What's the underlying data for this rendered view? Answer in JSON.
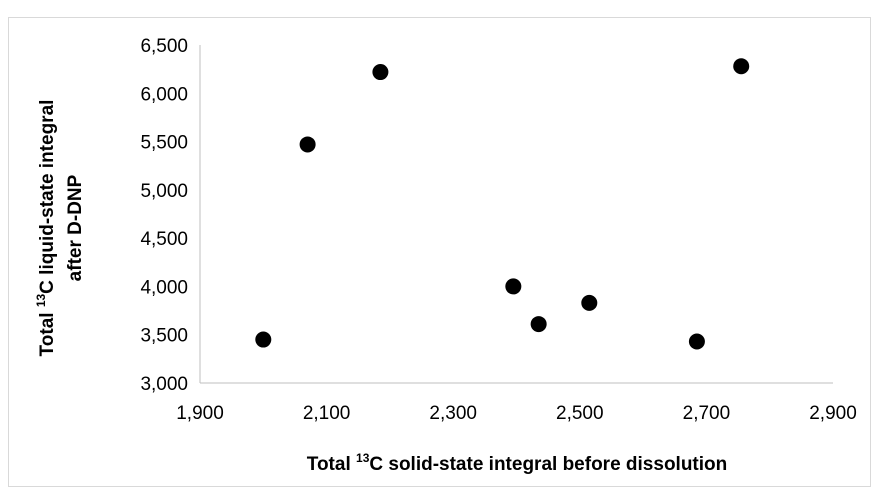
{
  "chart_data": {
    "type": "scatter",
    "title": "",
    "xlabel": {
      "prefix": "Total ",
      "sup": "13",
      "suffix": "C solid-state integral before dissolution"
    },
    "ylabel": {
      "line1_prefix": "Total ",
      "line1_sup": "13",
      "line1_suffix": "C liquid-state integral",
      "line2": "after D-DNP"
    },
    "xlim": [
      1900,
      2900
    ],
    "ylim": [
      3000,
      6500
    ],
    "x_ticks": [
      1900,
      2100,
      2300,
      2500,
      2700,
      2900
    ],
    "x_tick_labels": [
      "1,900",
      "2,100",
      "2,300",
      "2,500",
      "2,700",
      "2,900"
    ],
    "y_ticks": [
      3000,
      3500,
      4000,
      4500,
      5000,
      5500,
      6000,
      6500
    ],
    "y_tick_labels": [
      "3,000",
      "3,500",
      "4,000",
      "4,500",
      "5,000",
      "5,500",
      "6,000",
      "6,500"
    ],
    "grid": false,
    "legend": "none",
    "marker_color": "#000000",
    "points": [
      {
        "x": 2000,
        "y": 3450
      },
      {
        "x": 2070,
        "y": 5470
      },
      {
        "x": 2185,
        "y": 6220
      },
      {
        "x": 2395,
        "y": 4000
      },
      {
        "x": 2435,
        "y": 3610
      },
      {
        "x": 2515,
        "y": 3830
      },
      {
        "x": 2685,
        "y": 3430
      },
      {
        "x": 2755,
        "y": 6280
      }
    ]
  }
}
